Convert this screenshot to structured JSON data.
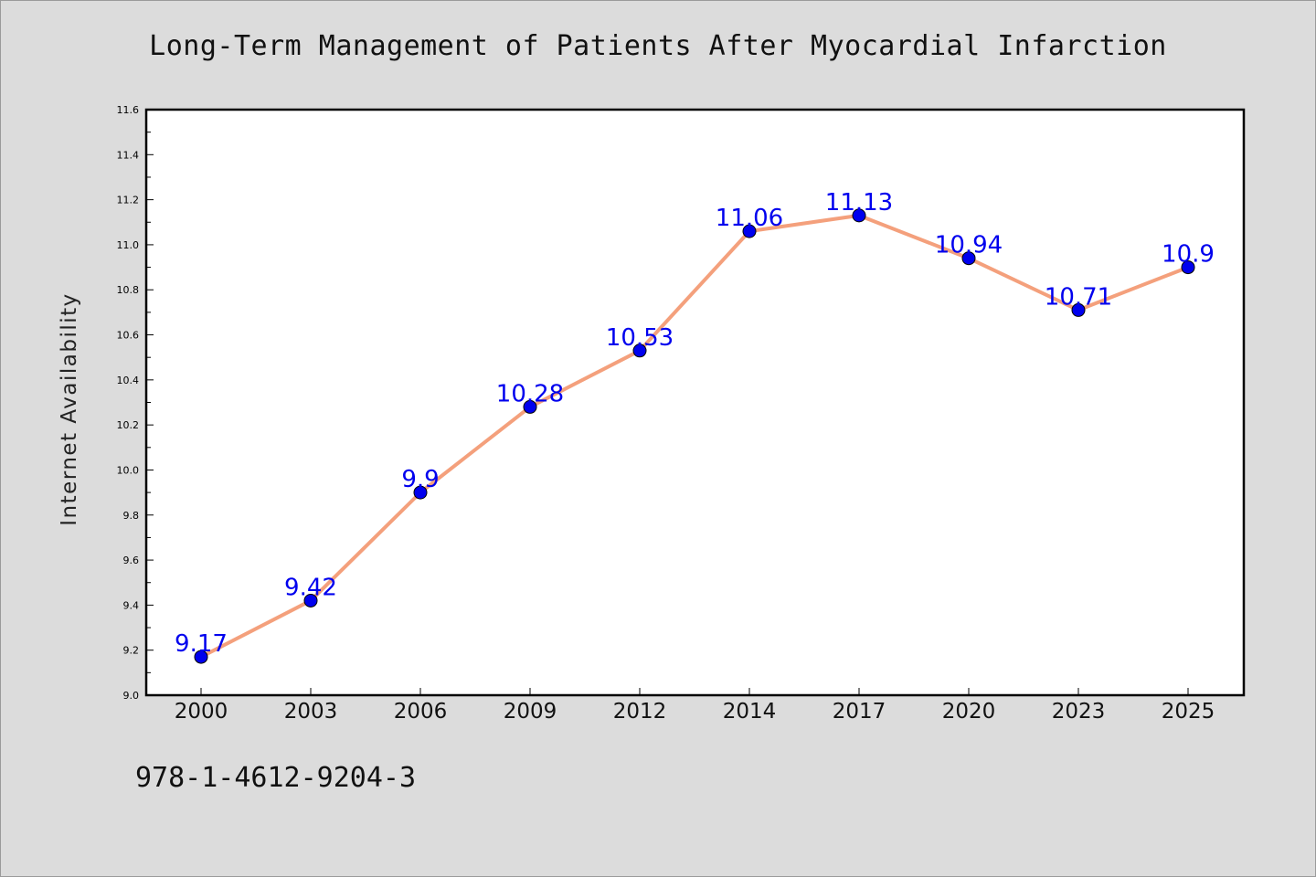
{
  "page": {
    "background": "#dcdcdc",
    "identifier": "978-1-4612-9204-3"
  },
  "chart_data": {
    "type": "line",
    "title": "Long-Term Management of Patients After Myocardial Infarction",
    "xlabel": "",
    "ylabel": "Internet Availability",
    "categories": [
      "2000",
      "2003",
      "2006",
      "2009",
      "2012",
      "2014",
      "2017",
      "2020",
      "2023",
      "2025"
    ],
    "series": [
      {
        "values": [
          9.17,
          9.42,
          9.9,
          10.28,
          10.53,
          11.06,
          11.13,
          10.94,
          10.71,
          10.9
        ],
        "data_labels": [
          "9.17",
          "9.42",
          "9.9",
          "10.28",
          "10.53",
          "11.06",
          "11.13",
          "10.94",
          "10.71",
          "10.9"
        ],
        "line_color": "#f4a07c",
        "marker_color": "#0000ee",
        "label_color": "#0000ee"
      }
    ],
    "ylim": [
      9.0,
      11.6
    ],
    "yticks": [
      "9.0",
      "9.2",
      "9.4",
      "9.6",
      "9.8",
      "10.0",
      "10.2",
      "10.4",
      "10.6",
      "10.8",
      "11.0",
      "11.2",
      "11.4",
      "11.6"
    ],
    "grid": false,
    "legend": "none",
    "plot_background": "#ffffff"
  }
}
